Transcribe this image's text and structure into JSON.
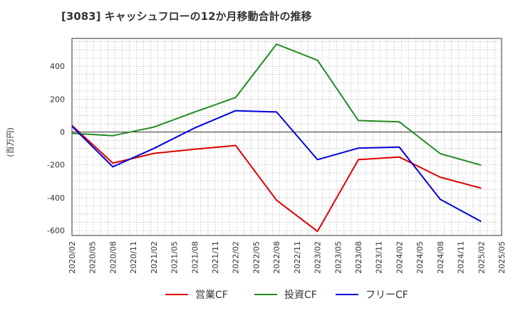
{
  "chart_data": {
    "type": "line",
    "title": "[3083]  キャッシュフローの12か月移動合計の推移",
    "ylabel": "(百万円)",
    "xlabel": "",
    "ylim": [
      -630,
      570
    ],
    "yticks": [
      400,
      200,
      0,
      -200,
      -400,
      -600
    ],
    "xtick_labels": [
      "2020/02",
      "2020/05",
      "2020/08",
      "2020/11",
      "2021/02",
      "2021/05",
      "2021/08",
      "2021/11",
      "2022/02",
      "2022/05",
      "2022/08",
      "2022/11",
      "2023/02",
      "2023/05",
      "2023/08",
      "2023/11",
      "2024/02",
      "2024/05",
      "2024/08",
      "2024/11",
      "2025/02",
      "2025/05"
    ],
    "grid": true,
    "legend_position": "bottom",
    "series": [
      {
        "name": "営業CF",
        "color": "#e00000",
        "points": [
          [
            0,
            40
          ],
          [
            2,
            -190
          ],
          [
            4,
            -130
          ],
          [
            6,
            -105
          ],
          [
            8,
            -82
          ],
          [
            10,
            -415
          ],
          [
            12,
            -605
          ],
          [
            14,
            -168
          ],
          [
            16,
            -152
          ],
          [
            18,
            -275
          ],
          [
            20,
            -342
          ]
        ]
      },
      {
        "name": "投資CF",
        "color": "#228b22",
        "points": [
          [
            0,
            -8
          ],
          [
            2,
            -22
          ],
          [
            4,
            30
          ],
          [
            6,
            122
          ],
          [
            8,
            210
          ],
          [
            10,
            535
          ],
          [
            12,
            437
          ],
          [
            14,
            70
          ],
          [
            16,
            62
          ],
          [
            18,
            -132
          ],
          [
            20,
            -202
          ]
        ]
      },
      {
        "name": "フリーCF",
        "color": "#0000dd",
        "points": [
          [
            0,
            35
          ],
          [
            2,
            -212
          ],
          [
            4,
            -100
          ],
          [
            6,
            25
          ],
          [
            8,
            130
          ],
          [
            10,
            122
          ],
          [
            12,
            -168
          ],
          [
            14,
            -98
          ],
          [
            16,
            -92
          ],
          [
            18,
            -410
          ],
          [
            20,
            -545
          ]
        ]
      }
    ]
  }
}
